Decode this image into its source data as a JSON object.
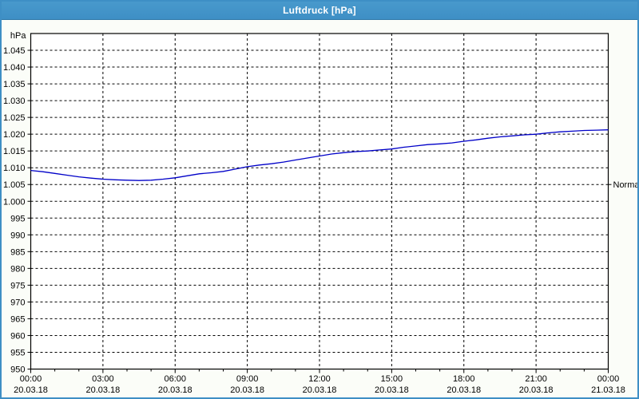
{
  "window": {
    "title": "Luftdruck [hPa]"
  },
  "colors": {
    "frame": "#3E8FC5",
    "background": "#FBFDF8",
    "plot_background": "#FFFFFF",
    "grid": "#000000",
    "line": "#0000C8",
    "text": "#000000",
    "title_text": "#FFFFFF"
  },
  "y_axis": {
    "unit": "hPa",
    "tick_values": [
      950,
      955,
      960,
      965,
      970,
      975,
      980,
      985,
      990,
      995,
      1000,
      1005,
      1010,
      1015,
      1020,
      1025,
      1030,
      1035,
      1040,
      1045
    ],
    "tick_labels": [
      "950",
      "955",
      "960",
      "965",
      "970",
      "975",
      "980",
      "985",
      "990",
      "995",
      "1.000",
      "1.005",
      "1.010",
      "1.015",
      "1.020",
      "1.025",
      "1.030",
      "1.035",
      "1.040",
      "1.045"
    ]
  },
  "x_axis": {
    "tick_hours": [
      0,
      3,
      6,
      9,
      12,
      15,
      18,
      21,
      24
    ],
    "time_labels": [
      "00:00",
      "03:00",
      "06:00",
      "09:00",
      "12:00",
      "15:00",
      "18:00",
      "21:00",
      "00:00"
    ],
    "date_labels": [
      "20.03.18",
      "20.03.18",
      "20.03.18",
      "20.03.18",
      "20.03.18",
      "20.03.18",
      "20.03.18",
      "20.03.18",
      "21.03.18"
    ],
    "minor_tick_interval_hours": 1
  },
  "right_axis": {
    "normal_label": "Normal",
    "normal_value": 1005
  },
  "chart_data": {
    "type": "line",
    "title": "Luftdruck [hPa]",
    "ylabel": "hPa",
    "xlabel": "",
    "xlim": [
      0,
      24
    ],
    "ylim": [
      950,
      1050
    ],
    "grid": true,
    "grid_style": "dashed",
    "legend_position": "none",
    "x_hours": [
      0,
      0.5,
      1,
      1.5,
      2,
      2.5,
      3,
      3.5,
      4,
      4.5,
      5,
      5.5,
      6,
      6.5,
      7,
      7.5,
      8,
      8.5,
      9,
      9.5,
      10,
      10.5,
      11,
      11.5,
      12,
      12.5,
      13,
      13.5,
      14,
      14.5,
      15,
      15.5,
      16,
      16.5,
      17,
      17.5,
      18,
      18.5,
      19,
      19.5,
      20,
      20.5,
      21,
      21.5,
      22,
      22.5,
      23,
      23.5,
      24
    ],
    "series": [
      {
        "name": "Luftdruck",
        "color": "#0000C8",
        "values": [
          1009.2,
          1008.8,
          1008.3,
          1007.8,
          1007.3,
          1006.9,
          1006.6,
          1006.4,
          1006.3,
          1006.2,
          1006.3,
          1006.6,
          1007.0,
          1007.6,
          1008.2,
          1008.5,
          1008.9,
          1009.6,
          1010.3,
          1010.8,
          1011.2,
          1011.7,
          1012.3,
          1012.9,
          1013.5,
          1014.1,
          1014.5,
          1014.8,
          1015.0,
          1015.3,
          1015.6,
          1016.1,
          1016.5,
          1016.9,
          1017.1,
          1017.4,
          1017.9,
          1018.3,
          1018.8,
          1019.2,
          1019.5,
          1019.8,
          1020.0,
          1020.4,
          1020.7,
          1020.9,
          1021.1,
          1021.2,
          1021.3
        ]
      }
    ],
    "annotations": [
      {
        "label": "Normal",
        "value": 1005,
        "position": "right-axis"
      }
    ]
  }
}
